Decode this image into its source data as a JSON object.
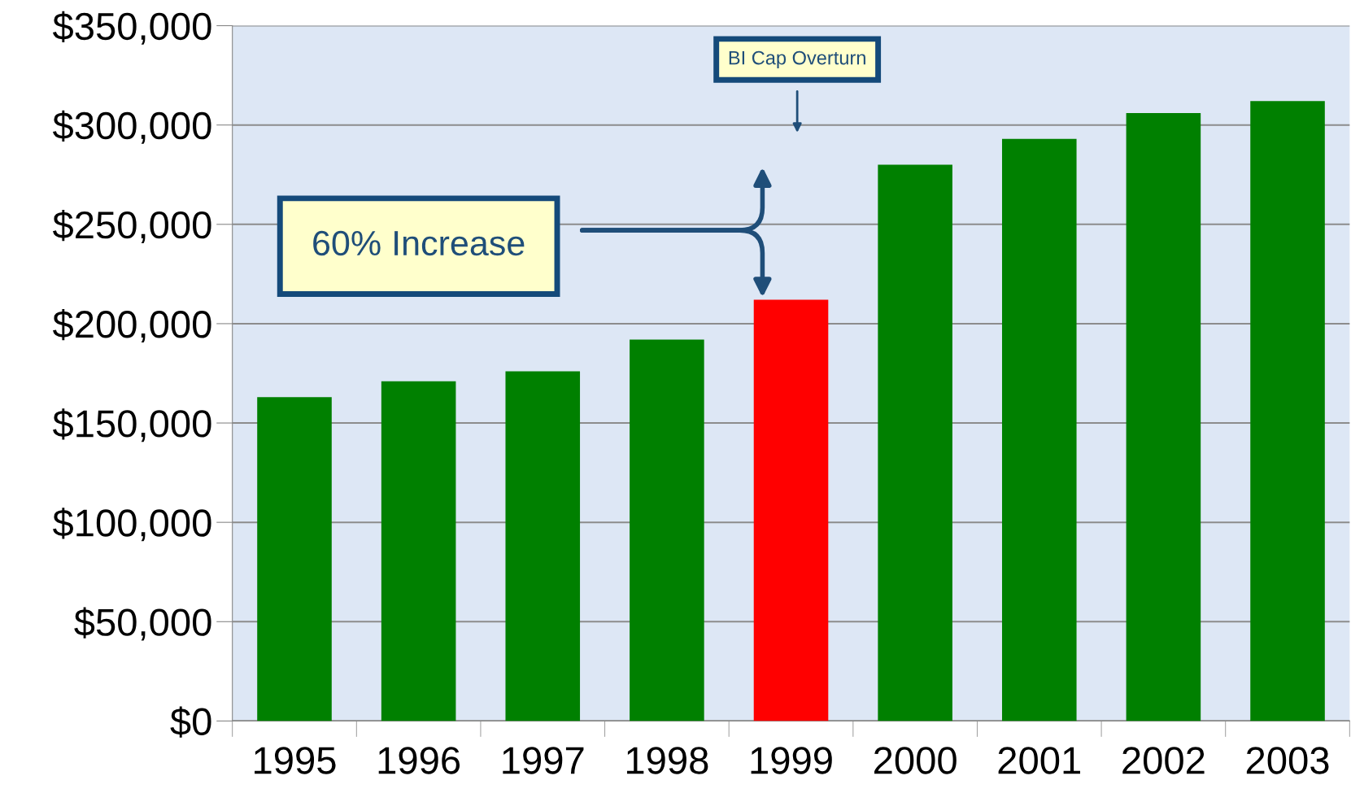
{
  "chart_data": {
    "type": "bar",
    "categories": [
      "1995",
      "1996",
      "1997",
      "1998",
      "1999",
      "2000",
      "2001",
      "2002",
      "2003"
    ],
    "values": [
      163000,
      171000,
      176000,
      192000,
      212000,
      280000,
      293000,
      306000,
      312000
    ],
    "colors": [
      "#008000",
      "#008000",
      "#008000",
      "#008000",
      "#ff0000",
      "#008000",
      "#008000",
      "#008000",
      "#008000"
    ],
    "ylim": [
      0,
      350000
    ],
    "yticks": [
      {
        "value": 0,
        "label": "$0"
      },
      {
        "value": 50000,
        "label": "$50,000"
      },
      {
        "value": 100000,
        "label": "$100,000"
      },
      {
        "value": 150000,
        "label": "$150,000"
      },
      {
        "value": 200000,
        "label": "$200,000"
      },
      {
        "value": 250000,
        "label": "$250,000"
      },
      {
        "value": 300000,
        "label": "$300,000"
      },
      {
        "value": 350000,
        "label": "$350,000"
      }
    ],
    "grid": "y",
    "annotations": [
      "BI Cap Overturn",
      "60% Increase"
    ]
  }
}
